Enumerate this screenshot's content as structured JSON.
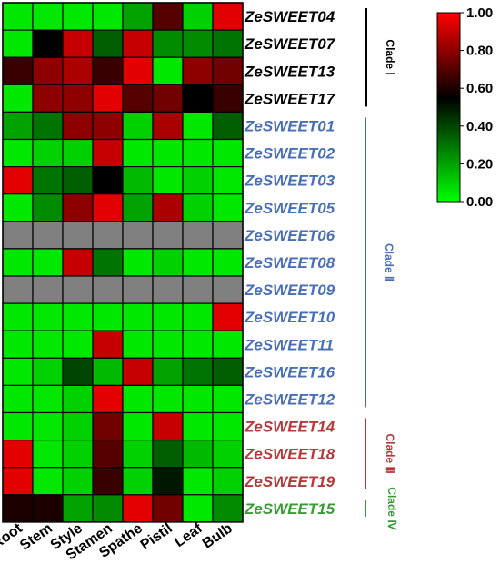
{
  "chart_data": {
    "type": "heatmap",
    "columns": [
      "Root",
      "Stem",
      "Style",
      "Stamen",
      "Spathe",
      "Pistil",
      "Leaf",
      "Bulb"
    ],
    "rows": [
      {
        "gene": "ZeSWEET04",
        "clade": "I",
        "values": [
          0.05,
          0.05,
          0.05,
          0.05,
          0.2,
          0.7,
          0.1,
          0.95
        ]
      },
      {
        "gene": "ZeSWEET07",
        "clade": "I",
        "values": [
          0.05,
          0.55,
          0.9,
          0.35,
          0.9,
          0.25,
          0.25,
          0.3
        ]
      },
      {
        "gene": "ZeSWEET13",
        "clade": "I",
        "values": [
          0.65,
          0.8,
          0.85,
          0.65,
          0.95,
          0.05,
          0.8,
          0.75
        ]
      },
      {
        "gene": "ZeSWEET17",
        "clade": "I",
        "values": [
          0.05,
          0.8,
          0.8,
          0.95,
          0.7,
          0.75,
          0.55,
          0.65
        ]
      },
      {
        "gene": "ZeSWEET01",
        "clade": "II",
        "values": [
          0.2,
          0.3,
          0.8,
          0.8,
          0.1,
          0.85,
          0.05,
          0.35
        ]
      },
      {
        "gene": "ZeSWEET02",
        "clade": "II",
        "values": [
          0.05,
          0.1,
          0.1,
          0.9,
          0.05,
          0.05,
          0.05,
          0.05
        ]
      },
      {
        "gene": "ZeSWEET03",
        "clade": "II",
        "values": [
          0.95,
          0.3,
          0.35,
          0.55,
          0.15,
          0.05,
          0.1,
          0.05
        ]
      },
      {
        "gene": "ZeSWEET05",
        "clade": "II",
        "values": [
          0.05,
          0.25,
          0.8,
          0.95,
          0.2,
          0.85,
          0.1,
          0.05
        ]
      },
      {
        "gene": "ZeSWEET06",
        "clade": "II",
        "values": [
          null,
          null,
          null,
          null,
          null,
          null,
          null,
          null
        ]
      },
      {
        "gene": "ZeSWEET08",
        "clade": "II",
        "values": [
          0.05,
          0.05,
          0.9,
          0.3,
          0.05,
          0.1,
          0.05,
          0.05
        ]
      },
      {
        "gene": "ZeSWEET09",
        "clade": "II",
        "values": [
          null,
          null,
          null,
          null,
          null,
          null,
          null,
          null
        ]
      },
      {
        "gene": "ZeSWEET10",
        "clade": "II",
        "values": [
          0.05,
          0.05,
          0.05,
          0.05,
          0.05,
          0.05,
          0.05,
          0.95
        ]
      },
      {
        "gene": "ZeSWEET11",
        "clade": "II",
        "values": [
          0.05,
          0.05,
          0.05,
          0.9,
          0.05,
          0.05,
          0.05,
          0.05
        ]
      },
      {
        "gene": "ZeSWEET16",
        "clade": "II",
        "values": [
          0.05,
          0.1,
          0.4,
          0.15,
          0.9,
          0.2,
          0.3,
          0.35
        ]
      },
      {
        "gene": "ZeSWEET12",
        "clade": "II",
        "values": [
          0.05,
          0.05,
          0.1,
          0.95,
          0.05,
          0.05,
          0.05,
          0.05
        ]
      },
      {
        "gene": "ZeSWEET14",
        "clade": "III",
        "values": [
          0.05,
          0.05,
          0.1,
          0.75,
          0.05,
          0.9,
          0.05,
          0.05
        ]
      },
      {
        "gene": "ZeSWEET18",
        "clade": "III",
        "values": [
          0.95,
          0.05,
          0.1,
          0.7,
          0.1,
          0.35,
          0.15,
          0.1
        ]
      },
      {
        "gene": "ZeSWEET19",
        "clade": "III",
        "values": [
          0.95,
          0.05,
          0.1,
          0.65,
          0.1,
          0.5,
          0.05,
          0.1
        ]
      },
      {
        "gene": "ZeSWEET15",
        "clade": "IV",
        "values": [
          0.6,
          0.6,
          0.2,
          0.25,
          0.95,
          0.75,
          0.05,
          0.25
        ]
      }
    ],
    "missing_color": "#808080",
    "colorbar": {
      "min": 0,
      "max": 1,
      "ticks": [
        "0.00",
        "0.20",
        "0.40",
        "0.60",
        "0.80",
        "1.00"
      ],
      "stops": [
        {
          "v": 0,
          "c": "#00ff00"
        },
        {
          "v": 0.55,
          "c": "#000000"
        },
        {
          "v": 1,
          "c": "#ff0000"
        }
      ]
    },
    "clades": [
      {
        "label": "Clade Ⅰ",
        "id": "I",
        "color": "#000000"
      },
      {
        "label": "Clade Ⅱ",
        "id": "II",
        "color": "#4a6fb5"
      },
      {
        "label": "Clade Ⅲ",
        "id": "III",
        "color": "#b23a3a"
      },
      {
        "label": "Clade Ⅳ",
        "id": "IV",
        "color": "#3a9a3a"
      }
    ]
  }
}
